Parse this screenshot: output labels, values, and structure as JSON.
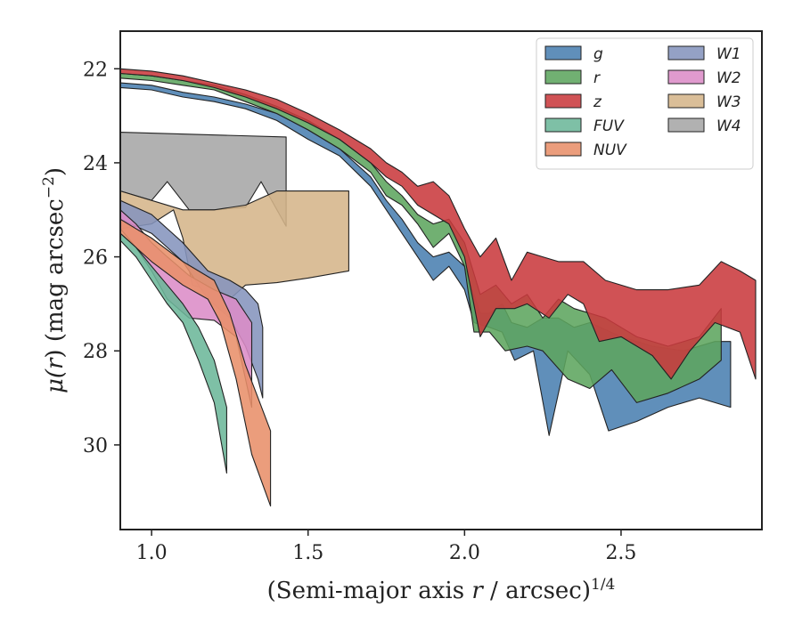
{
  "chart_data": {
    "type": "area",
    "xlabel_prefix": "(Semi-major axis ",
    "xlabel_var": "r",
    "xlabel_mid": " / arcsec)",
    "xlabel_sup": "1/4",
    "ylabel_pre": "μ(",
    "ylabel_var": "r",
    "ylabel_post": ") (mag arcsec",
    "ylabel_sup": "−2",
    "ylabel_end": ")",
    "xlim": [
      0.9,
      2.95
    ],
    "ylim": [
      31.8,
      21.2
    ],
    "y_inverted": true,
    "xticks": [
      1.0,
      1.5,
      2.0,
      2.5
    ],
    "xtick_labels": [
      "1.0",
      "1.5",
      "2.0",
      "2.5"
    ],
    "yticks": [
      22,
      24,
      26,
      28,
      30
    ],
    "ytick_labels": [
      "22",
      "24",
      "26",
      "28",
      "30"
    ],
    "grid": false,
    "legend_position": "top-right",
    "legend_columns": 2,
    "series": [
      {
        "name": "W4",
        "color": "#a6a6a6",
        "upper": [
          [
            0.9,
            23.35
          ],
          [
            1.43,
            23.45
          ]
        ],
        "lower": [
          [
            0.9,
            24.6
          ],
          [
            1.0,
            24.8
          ],
          [
            1.05,
            24.4
          ],
          [
            1.12,
            25.0
          ],
          [
            1.2,
            25.0
          ],
          [
            1.3,
            24.95
          ],
          [
            1.35,
            24.4
          ],
          [
            1.43,
            25.35
          ]
        ]
      },
      {
        "name": "W3",
        "color": "#d5b58a",
        "upper": [
          [
            0.9,
            24.6
          ],
          [
            1.0,
            24.8
          ],
          [
            1.1,
            25.0
          ],
          [
            1.2,
            25.0
          ],
          [
            1.3,
            24.9
          ],
          [
            1.4,
            24.6
          ],
          [
            1.5,
            24.6
          ],
          [
            1.63,
            24.6
          ]
        ],
        "lower": [
          [
            0.9,
            25.4
          ],
          [
            1.0,
            25.3
          ],
          [
            1.07,
            25.0
          ],
          [
            1.1,
            25.6
          ],
          [
            1.13,
            26.6
          ],
          [
            1.18,
            26.7
          ],
          [
            1.25,
            26.9
          ],
          [
            1.3,
            26.6
          ],
          [
            1.4,
            26.55
          ],
          [
            1.5,
            26.45
          ],
          [
            1.63,
            26.3
          ]
        ]
      },
      {
        "name": "W1",
        "color": "#8594bd",
        "upper": [
          [
            0.9,
            24.8
          ],
          [
            1.0,
            25.1
          ],
          [
            1.05,
            25.4
          ],
          [
            1.1,
            25.7
          ],
          [
            1.18,
            26.3
          ],
          [
            1.25,
            26.5
          ],
          [
            1.3,
            26.7
          ],
          [
            1.34,
            27.0
          ],
          [
            1.355,
            27.5
          ]
        ],
        "lower": [
          [
            0.9,
            25.2
          ],
          [
            1.0,
            25.5
          ],
          [
            1.05,
            25.8
          ],
          [
            1.1,
            26.1
          ],
          [
            1.18,
            26.9
          ],
          [
            1.25,
            27.3
          ],
          [
            1.3,
            27.9
          ],
          [
            1.34,
            28.6
          ],
          [
            1.355,
            29.0
          ]
        ]
      },
      {
        "name": "W2",
        "color": "#dc8cc7",
        "upper": [
          [
            0.9,
            25.0
          ],
          [
            0.95,
            25.3
          ],
          [
            1.0,
            25.7
          ],
          [
            1.05,
            26.0
          ],
          [
            1.12,
            26.4
          ],
          [
            1.2,
            26.7
          ],
          [
            1.27,
            26.9
          ],
          [
            1.32,
            27.4
          ]
        ],
        "lower": [
          [
            0.9,
            25.4
          ],
          [
            0.95,
            25.8
          ],
          [
            1.0,
            26.3
          ],
          [
            1.05,
            26.9
          ],
          [
            1.12,
            27.3
          ],
          [
            1.2,
            27.35
          ],
          [
            1.27,
            27.7
          ],
          [
            1.32,
            29.2
          ]
        ]
      },
      {
        "name": "NUV",
        "color": "#e8906a",
        "upper": [
          [
            0.9,
            25.2
          ],
          [
            1.0,
            25.6
          ],
          [
            1.1,
            26.1
          ],
          [
            1.2,
            26.5
          ],
          [
            1.25,
            27.2
          ],
          [
            1.3,
            28.3
          ],
          [
            1.38,
            29.7
          ]
        ],
        "lower": [
          [
            0.9,
            25.5
          ],
          [
            1.0,
            26.1
          ],
          [
            1.1,
            26.6
          ],
          [
            1.18,
            26.9
          ],
          [
            1.22,
            27.4
          ],
          [
            1.27,
            28.6
          ],
          [
            1.32,
            30.2
          ],
          [
            1.38,
            31.3
          ]
        ]
      },
      {
        "name": "FUV",
        "color": "#6cb79a",
        "upper": [
          [
            0.9,
            25.5
          ],
          [
            0.95,
            25.8
          ],
          [
            1.0,
            26.2
          ],
          [
            1.05,
            26.6
          ],
          [
            1.1,
            27.0
          ],
          [
            1.15,
            27.5
          ],
          [
            1.2,
            28.2
          ],
          [
            1.24,
            29.2
          ]
        ],
        "lower": [
          [
            0.9,
            25.65
          ],
          [
            0.95,
            26.0
          ],
          [
            1.0,
            26.5
          ],
          [
            1.05,
            27.0
          ],
          [
            1.1,
            27.4
          ],
          [
            1.15,
            28.2
          ],
          [
            1.2,
            29.1
          ],
          [
            1.24,
            30.6
          ]
        ]
      },
      {
        "name": "g",
        "color": "#4a7fb0",
        "upper": [
          [
            0.9,
            22.3
          ],
          [
            1.0,
            22.35
          ],
          [
            1.1,
            22.5
          ],
          [
            1.2,
            22.6
          ],
          [
            1.3,
            22.75
          ],
          [
            1.4,
            22.95
          ],
          [
            1.5,
            23.3
          ],
          [
            1.6,
            23.7
          ],
          [
            1.7,
            24.3
          ],
          [
            1.75,
            24.8
          ],
          [
            1.8,
            25.2
          ],
          [
            1.85,
            25.7
          ],
          [
            1.9,
            26.0
          ],
          [
            1.95,
            25.9
          ],
          [
            2.0,
            26.2
          ],
          [
            2.05,
            27.2
          ],
          [
            2.08,
            27.2
          ],
          [
            2.12,
            27.0
          ],
          [
            2.15,
            27.4
          ],
          [
            2.2,
            27.5
          ],
          [
            2.25,
            27.3
          ],
          [
            2.3,
            27.3
          ],
          [
            2.35,
            27.5
          ],
          [
            2.4,
            27.4
          ],
          [
            2.5,
            27.7
          ],
          [
            2.6,
            27.9
          ],
          [
            2.7,
            28.0
          ],
          [
            2.8,
            27.8
          ],
          [
            2.85,
            27.8
          ]
        ],
        "lower": [
          [
            0.9,
            22.4
          ],
          [
            1.0,
            22.45
          ],
          [
            1.1,
            22.6
          ],
          [
            1.2,
            22.7
          ],
          [
            1.3,
            22.85
          ],
          [
            1.4,
            23.1
          ],
          [
            1.5,
            23.5
          ],
          [
            1.6,
            23.85
          ],
          [
            1.7,
            24.5
          ],
          [
            1.75,
            25.0
          ],
          [
            1.8,
            25.5
          ],
          [
            1.85,
            26.0
          ],
          [
            1.9,
            26.5
          ],
          [
            1.95,
            26.2
          ],
          [
            2.0,
            26.7
          ],
          [
            2.03,
            27.4
          ],
          [
            2.08,
            27.5
          ],
          [
            2.12,
            27.6
          ],
          [
            2.16,
            28.2
          ],
          [
            2.22,
            28.0
          ],
          [
            2.27,
            29.8
          ],
          [
            2.33,
            28.0
          ],
          [
            2.4,
            28.5
          ],
          [
            2.46,
            29.7
          ],
          [
            2.55,
            29.5
          ],
          [
            2.65,
            29.2
          ],
          [
            2.75,
            29.0
          ],
          [
            2.85,
            29.2
          ]
        ]
      },
      {
        "name": "r",
        "color": "#5da55f",
        "upper": [
          [
            0.9,
            22.1
          ],
          [
            1.0,
            22.15
          ],
          [
            1.1,
            22.25
          ],
          [
            1.2,
            22.35
          ],
          [
            1.3,
            22.55
          ],
          [
            1.4,
            22.8
          ],
          [
            1.5,
            23.1
          ],
          [
            1.6,
            23.5
          ],
          [
            1.7,
            24.0
          ],
          [
            1.75,
            24.4
          ],
          [
            1.8,
            24.7
          ],
          [
            1.85,
            25.1
          ],
          [
            1.9,
            25.3
          ],
          [
            1.95,
            25.2
          ],
          [
            2.0,
            25.7
          ],
          [
            2.05,
            26.8
          ],
          [
            2.1,
            26.6
          ],
          [
            2.15,
            27.0
          ],
          [
            2.2,
            26.8
          ],
          [
            2.25,
            27.3
          ],
          [
            2.3,
            26.9
          ],
          [
            2.35,
            27.1
          ],
          [
            2.45,
            27.3
          ],
          [
            2.55,
            27.7
          ],
          [
            2.65,
            27.9
          ],
          [
            2.75,
            27.7
          ],
          [
            2.82,
            27.1
          ]
        ],
        "lower": [
          [
            0.9,
            22.2
          ],
          [
            1.0,
            22.25
          ],
          [
            1.1,
            22.35
          ],
          [
            1.2,
            22.45
          ],
          [
            1.3,
            22.7
          ],
          [
            1.4,
            22.95
          ],
          [
            1.5,
            23.3
          ],
          [
            1.6,
            23.7
          ],
          [
            1.7,
            24.2
          ],
          [
            1.75,
            24.7
          ],
          [
            1.8,
            24.9
          ],
          [
            1.85,
            25.3
          ],
          [
            1.9,
            25.8
          ],
          [
            1.95,
            25.5
          ],
          [
            2.0,
            26.2
          ],
          [
            2.03,
            27.6
          ],
          [
            2.08,
            27.6
          ],
          [
            2.13,
            28.0
          ],
          [
            2.2,
            27.9
          ],
          [
            2.25,
            28.0
          ],
          [
            2.33,
            28.6
          ],
          [
            2.4,
            28.8
          ],
          [
            2.47,
            28.4
          ],
          [
            2.55,
            29.1
          ],
          [
            2.65,
            28.9
          ],
          [
            2.75,
            28.6
          ],
          [
            2.82,
            28.2
          ]
        ]
      },
      {
        "name": "z",
        "color": "#c93a3e",
        "upper": [
          [
            0.9,
            22.0
          ],
          [
            1.0,
            22.05
          ],
          [
            1.1,
            22.15
          ],
          [
            1.2,
            22.3
          ],
          [
            1.3,
            22.45
          ],
          [
            1.4,
            22.65
          ],
          [
            1.5,
            22.95
          ],
          [
            1.6,
            23.3
          ],
          [
            1.7,
            23.7
          ],
          [
            1.75,
            24.0
          ],
          [
            1.8,
            24.2
          ],
          [
            1.85,
            24.5
          ],
          [
            1.9,
            24.4
          ],
          [
            1.95,
            24.7
          ],
          [
            2.0,
            25.4
          ],
          [
            2.05,
            26.0
          ],
          [
            2.1,
            25.6
          ],
          [
            2.15,
            26.5
          ],
          [
            2.2,
            25.9
          ],
          [
            2.25,
            26.0
          ],
          [
            2.3,
            26.1
          ],
          [
            2.38,
            26.1
          ],
          [
            2.45,
            26.5
          ],
          [
            2.55,
            26.7
          ],
          [
            2.65,
            26.7
          ],
          [
            2.75,
            26.6
          ],
          [
            2.82,
            26.1
          ],
          [
            2.88,
            26.3
          ],
          [
            2.93,
            26.5
          ]
        ],
        "lower": [
          [
            0.9,
            22.1
          ],
          [
            1.0,
            22.15
          ],
          [
            1.1,
            22.25
          ],
          [
            1.2,
            22.4
          ],
          [
            1.3,
            22.6
          ],
          [
            1.4,
            22.85
          ],
          [
            1.5,
            23.15
          ],
          [
            1.6,
            23.5
          ],
          [
            1.7,
            24.0
          ],
          [
            1.75,
            24.3
          ],
          [
            1.8,
            24.5
          ],
          [
            1.85,
            24.9
          ],
          [
            1.9,
            25.1
          ],
          [
            1.95,
            25.3
          ],
          [
            2.0,
            26.0
          ],
          [
            2.05,
            27.7
          ],
          [
            2.1,
            27.1
          ],
          [
            2.16,
            27.1
          ],
          [
            2.2,
            27.0
          ],
          [
            2.27,
            27.3
          ],
          [
            2.33,
            26.8
          ],
          [
            2.38,
            27.0
          ],
          [
            2.43,
            27.8
          ],
          [
            2.5,
            27.7
          ],
          [
            2.6,
            28.1
          ],
          [
            2.66,
            28.6
          ],
          [
            2.72,
            28.0
          ],
          [
            2.8,
            27.4
          ],
          [
            2.88,
            27.6
          ],
          [
            2.93,
            28.6
          ]
        ]
      }
    ],
    "legend_order": [
      "g",
      "r",
      "z",
      "FUV",
      "NUV",
      "W1",
      "W2",
      "W3",
      "W4"
    ]
  }
}
